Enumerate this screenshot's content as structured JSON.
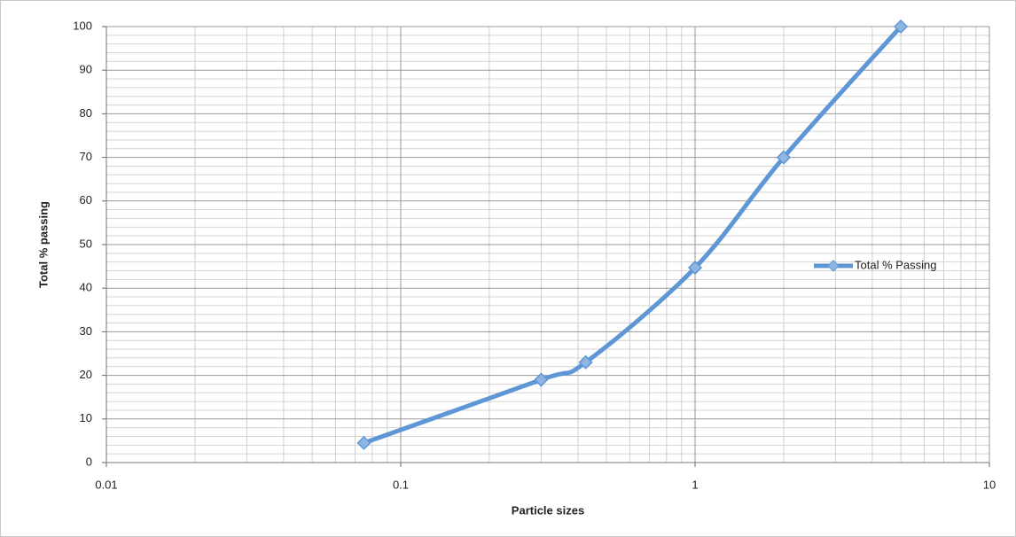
{
  "chart_data": {
    "type": "line",
    "x_label": "Particle sizes",
    "y_label": "Total % passing",
    "xscale": "log",
    "xlim": [
      0.01,
      10
    ],
    "xticks": [
      0.01,
      0.1,
      1,
      10
    ],
    "ylim": [
      0,
      100
    ],
    "yticks": [
      0,
      10,
      20,
      30,
      40,
      50,
      60,
      70,
      80,
      90,
      100
    ],
    "grid": true,
    "minor_grid": true,
    "legend": "right",
    "x": [
      0.075,
      0.3,
      0.425,
      1,
      2,
      5
    ],
    "series": [
      {
        "name": "Total % Passing",
        "color": "#5f97d6",
        "values": [
          4.5,
          19,
          23,
          44.7,
          70,
          100
        ]
      }
    ]
  }
}
